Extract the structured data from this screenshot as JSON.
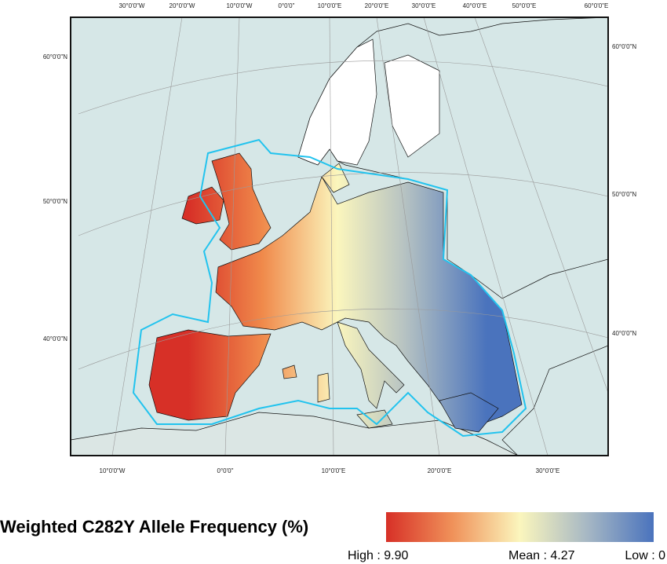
{
  "map": {
    "top_labels": [
      "30°0'0\"W",
      "20°0'0\"W",
      "10°0'0\"W",
      "0°0'0\"",
      "10°0'0\"E",
      "20°0'0\"E",
      "30°0'0\"E",
      "40°0'0\"E",
      "50°0'0\"E",
      "60°0'0\"E"
    ],
    "left_labels": [
      "60°0'0\"N",
      "50°0'0\"N",
      "40°0'0\"N"
    ],
    "right_labels": [
      "60°0'0\"N",
      "50°0'0\"N",
      "40°0'0\"N"
    ],
    "bottom_labels": [
      "10°0'0\"W",
      "0°0'0\"",
      "10°0'0\"E",
      "20°0'0\"E",
      "30°0'0\"E"
    ]
  },
  "legend": {
    "title": "Weighted C282Y Allele Frequency (%)",
    "high": "High : 9.90",
    "mean": "Mean : 4.27",
    "low": "Low : 0"
  }
}
